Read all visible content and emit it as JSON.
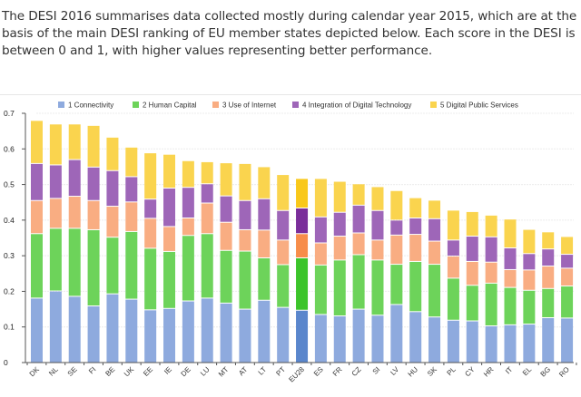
{
  "intro": {
    "text": "The DESI 2016 summarises data collected mostly during calendar year 2015, which are at the basis of the main DESI ranking of EU member states depicted below. Each score in the DESI is between 0 and 1, with higher values representing better performance."
  },
  "chart_data": {
    "type": "bar",
    "stacked": true,
    "title": "",
    "xlabel": "",
    "ylabel": "",
    "ylim": [
      0,
      0.7
    ],
    "yticks": [
      "0",
      "0.1",
      "0.2",
      "0.3",
      "0.4",
      "0.5",
      "0.6",
      "0.7"
    ],
    "grid": true,
    "legend_position": "top",
    "highlight_category": "EU28",
    "categories": [
      "DK",
      "NL",
      "SE",
      "FI",
      "BE",
      "UK",
      "EE",
      "IE",
      "DE",
      "LU",
      "MT",
      "AT",
      "LT",
      "PT",
      "EU28",
      "ES",
      "FR",
      "CZ",
      "SI",
      "LV",
      "HU",
      "SK",
      "PL",
      "CY",
      "HR",
      "IT",
      "EL",
      "BG",
      "RO"
    ],
    "series": [
      {
        "name": "1 Connectivity",
        "color": "#8eaade",
        "highlight_color": "#5a86cc",
        "values": [
          0.181,
          0.201,
          0.186,
          0.159,
          0.193,
          0.178,
          0.148,
          0.152,
          0.173,
          0.181,
          0.167,
          0.15,
          0.175,
          0.155,
          0.147,
          0.135,
          0.131,
          0.15,
          0.133,
          0.163,
          0.143,
          0.128,
          0.119,
          0.117,
          0.103,
          0.106,
          0.108,
          0.126,
          0.125
        ]
      },
      {
        "name": "2 Human Capital",
        "color": "#6dd35a",
        "highlight_color": "#3cc42a",
        "values": [
          0.181,
          0.176,
          0.191,
          0.214,
          0.159,
          0.19,
          0.173,
          0.16,
          0.184,
          0.181,
          0.148,
          0.163,
          0.119,
          0.12,
          0.147,
          0.139,
          0.157,
          0.153,
          0.155,
          0.113,
          0.141,
          0.148,
          0.118,
          0.1,
          0.12,
          0.105,
          0.095,
          0.082,
          0.09
        ]
      },
      {
        "name": "3 Use of Internet",
        "color": "#f9ad82",
        "highlight_color": "#f78d4a",
        "values": [
          0.093,
          0.084,
          0.09,
          0.082,
          0.087,
          0.083,
          0.084,
          0.07,
          0.049,
          0.086,
          0.079,
          0.06,
          0.078,
          0.069,
          0.068,
          0.062,
          0.067,
          0.061,
          0.056,
          0.082,
          0.076,
          0.065,
          0.062,
          0.067,
          0.059,
          0.05,
          0.057,
          0.063,
          0.05
        ]
      },
      {
        "name": "4 Integration of Digital Technology",
        "color": "#9e66b8",
        "highlight_color": "#7a2e9a",
        "values": [
          0.104,
          0.094,
          0.103,
          0.094,
          0.1,
          0.071,
          0.054,
          0.108,
          0.086,
          0.054,
          0.074,
          0.082,
          0.088,
          0.083,
          0.072,
          0.073,
          0.067,
          0.078,
          0.083,
          0.042,
          0.046,
          0.063,
          0.045,
          0.071,
          0.071,
          0.061,
          0.046,
          0.048,
          0.039
        ]
      },
      {
        "name": "5 Digital Public Services",
        "color": "#fad44e",
        "highlight_color": "#f9c81a",
        "values": [
          0.121,
          0.115,
          0.1,
          0.117,
          0.094,
          0.083,
          0.13,
          0.095,
          0.075,
          0.062,
          0.093,
          0.104,
          0.09,
          0.101,
          0.083,
          0.108,
          0.087,
          0.06,
          0.067,
          0.083,
          0.057,
          0.052,
          0.084,
          0.069,
          0.061,
          0.081,
          0.068,
          0.048,
          0.05
        ]
      }
    ]
  }
}
